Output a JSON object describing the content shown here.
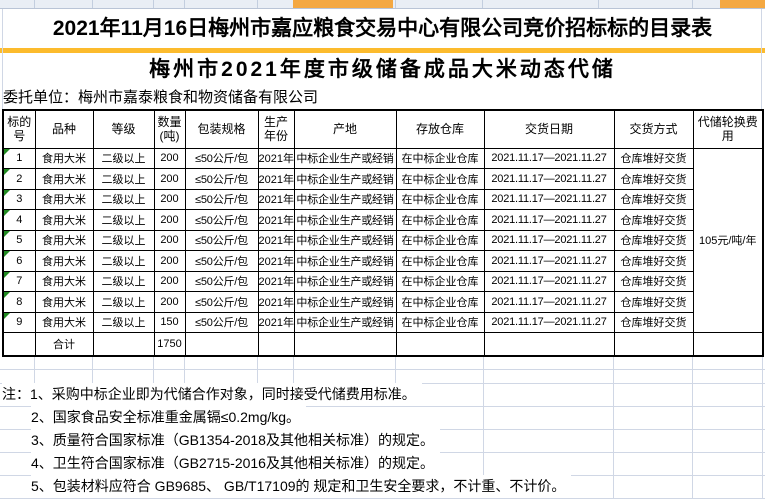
{
  "colors": {
    "strip_background": "#e9eef5",
    "strip_selection_orange": "#f4a842",
    "divider_yellow": "#fcbb2d",
    "faint_gridline": "#d0d7e5",
    "error_flag_green": "#228b22",
    "table_border": "#000000",
    "text": "#000000"
  },
  "header": {
    "title": "2021年11月16日梅州市嘉应粮食交易中心有限公司竞价招标标的目录表",
    "subtitle": "梅州市2021年度市级储备成品大米动态代储",
    "client_line": "委托单位：梅州市嘉泰粮食和物资储备有限公司"
  },
  "table": {
    "columns": [
      "标的号",
      "品种",
      "等级",
      "数量(吨)",
      "包装规格",
      "生产年份",
      "产地",
      "存放仓库",
      "交货日期",
      "交货方式",
      "代储轮换费用"
    ],
    "rows": [
      {
        "no": "1",
        "variety": "食用大米",
        "grade": "二级以上",
        "qty": "200",
        "package": "≤50公斤/包",
        "year": "2021年",
        "origin": "中标企业生产或经销",
        "warehouse": "在中标企业仓库",
        "delivery_date": "2021.11.17—2021.11.27",
        "delivery_method": "仓库堆好交货"
      },
      {
        "no": "2",
        "variety": "食用大米",
        "grade": "二级以上",
        "qty": "200",
        "package": "≤50公斤/包",
        "year": "2021年",
        "origin": "中标企业生产或经销",
        "warehouse": "在中标企业仓库",
        "delivery_date": "2021.11.17—2021.11.27",
        "delivery_method": "仓库堆好交货"
      },
      {
        "no": "3",
        "variety": "食用大米",
        "grade": "二级以上",
        "qty": "200",
        "package": "≤50公斤/包",
        "year": "2021年",
        "origin": "中标企业生产或经销",
        "warehouse": "在中标企业仓库",
        "delivery_date": "2021.11.17—2021.11.27",
        "delivery_method": "仓库堆好交货"
      },
      {
        "no": "4",
        "variety": "食用大米",
        "grade": "二级以上",
        "qty": "200",
        "package": "≤50公斤/包",
        "year": "2021年",
        "origin": "中标企业生产或经销",
        "warehouse": "在中标企业仓库",
        "delivery_date": "2021.11.17—2021.11.27",
        "delivery_method": "仓库堆好交货"
      },
      {
        "no": "5",
        "variety": "食用大米",
        "grade": "二级以上",
        "qty": "200",
        "package": "≤50公斤/包",
        "year": "2021年",
        "origin": "中标企业生产或经销",
        "warehouse": "在中标企业仓库",
        "delivery_date": "2021.11.17—2021.11.27",
        "delivery_method": "仓库堆好交货"
      },
      {
        "no": "6",
        "variety": "食用大米",
        "grade": "二级以上",
        "qty": "200",
        "package": "≤50公斤/包",
        "year": "2021年",
        "origin": "中标企业生产或经销",
        "warehouse": "在中标企业仓库",
        "delivery_date": "2021.11.17—2021.11.27",
        "delivery_method": "仓库堆好交货"
      },
      {
        "no": "7",
        "variety": "食用大米",
        "grade": "二级以上",
        "qty": "200",
        "package": "≤50公斤/包",
        "year": "2021年",
        "origin": "中标企业生产或经销",
        "warehouse": "在中标企业仓库",
        "delivery_date": "2021.11.17—2021.11.27",
        "delivery_method": "仓库堆好交货"
      },
      {
        "no": "8",
        "variety": "食用大米",
        "grade": "二级以上",
        "qty": "200",
        "package": "≤50公斤/包",
        "year": "2021年",
        "origin": "中标企业生产或经销",
        "warehouse": "在中标企业仓库",
        "delivery_date": "2021.11.17—2021.11.27",
        "delivery_method": "仓库堆好交货"
      },
      {
        "no": "9",
        "variety": "食用大米",
        "grade": "二级以上",
        "qty": "150",
        "package": "≤50公斤/包",
        "year": "2021年",
        "origin": "中标企业生产或经销",
        "warehouse": "在中标企业仓库",
        "delivery_date": "2021.11.17—2021.11.27",
        "delivery_method": "仓库堆好交货"
      }
    ],
    "fee_merged": "105元/吨/年",
    "total": {
      "label": "合计",
      "qty": "1750"
    }
  },
  "notes": [
    "注：1、采购中标企业即为代储合作对象，同时接受代储费用标准。",
    "2、国家食品安全标准重金属镉≤0.2mg/kg。",
    "3、质量符合国家标准（GB1354-2018及其他相关标准）的规定。",
    "4、卫生符合国家标准（GB2715-2016及其他相关标准）的规定。",
    "5、包装材料应符合 GB9685、 GB/T17109的 规定和卫生安全要求，不计重、不计价。"
  ]
}
